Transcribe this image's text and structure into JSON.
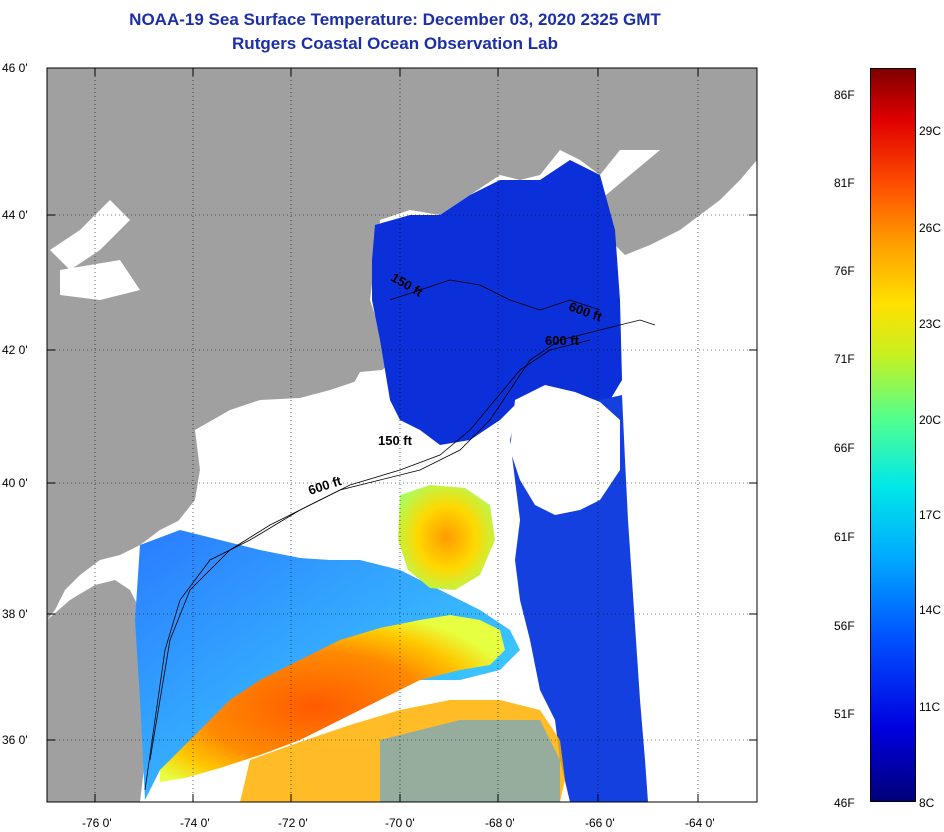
{
  "header": {
    "title": "NOAA-19 Sea Surface Temperature:  December 03, 2020 2325 GMT",
    "subtitle": "Rutgers Coastal Ocean Observation Lab"
  },
  "map": {
    "lat_labels": [
      "46 0'",
      "44 0'",
      "42 0'",
      "40 0'",
      "38 0'",
      "36 0'"
    ],
    "lon_labels": [
      "-76 0'",
      "-74 0'",
      "-72 0'",
      "-70 0'",
      "-68 0'",
      "-66 0'",
      "-64 0'"
    ],
    "contours": [
      "150 ft",
      "600 ft",
      "600 ft",
      "600 ft",
      "150 ft"
    ],
    "colors": {
      "land": "#a0a0a0",
      "cloud": "#ffffff",
      "cold_water": "#0b2fd8",
      "warm_core": "#ff6a00",
      "grid": "#000000"
    }
  },
  "colorbar": {
    "fahrenheit": [
      "86F",
      "81F",
      "76F",
      "71F",
      "66F",
      "61F",
      "56F",
      "51F",
      "46F"
    ],
    "celsius": [
      "29C",
      "26C",
      "23C",
      "20C",
      "17C",
      "14C",
      "11C",
      "8C"
    ]
  }
}
